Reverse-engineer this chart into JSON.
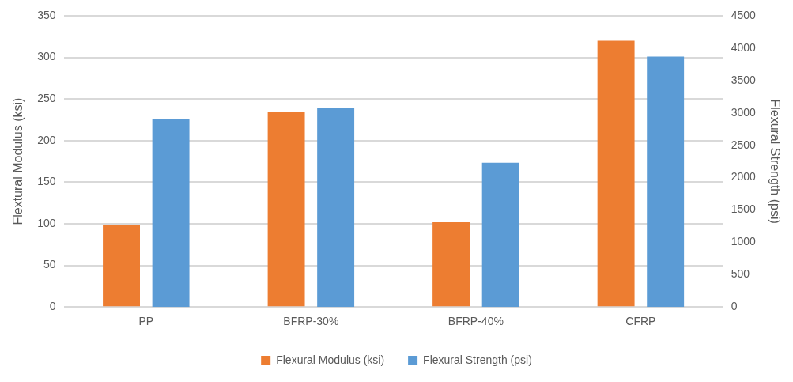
{
  "chart_data": {
    "type": "bar",
    "categories": [
      "PP",
      "BFRP-30%",
      "BFRP-40%",
      "CFRP"
    ],
    "series": [
      {
        "name": "Flexural Modulus (ksi)",
        "color": "#ed7d31",
        "values": [
          99,
          234,
          102,
          320
        ]
      },
      {
        "name": "Flexural Strength (psi)",
        "color": "#5b9bd5",
        "values": [
          2900,
          3070,
          2230,
          3870
        ],
        "axis": "y2"
      }
    ],
    "ylabel": "Flextural Modulus (ksi)",
    "y2label": "Flexural Strength (psi)",
    "ylim": [
      0,
      350
    ],
    "yticks": [
      0,
      50,
      100,
      150,
      200,
      250,
      300,
      350
    ],
    "y2lim": [
      0,
      4500
    ],
    "y2ticks": [
      0,
      500,
      1000,
      1500,
      2000,
      2500,
      3000,
      3500,
      4000,
      4500
    ],
    "grid": "y",
    "legend": "bottom"
  }
}
